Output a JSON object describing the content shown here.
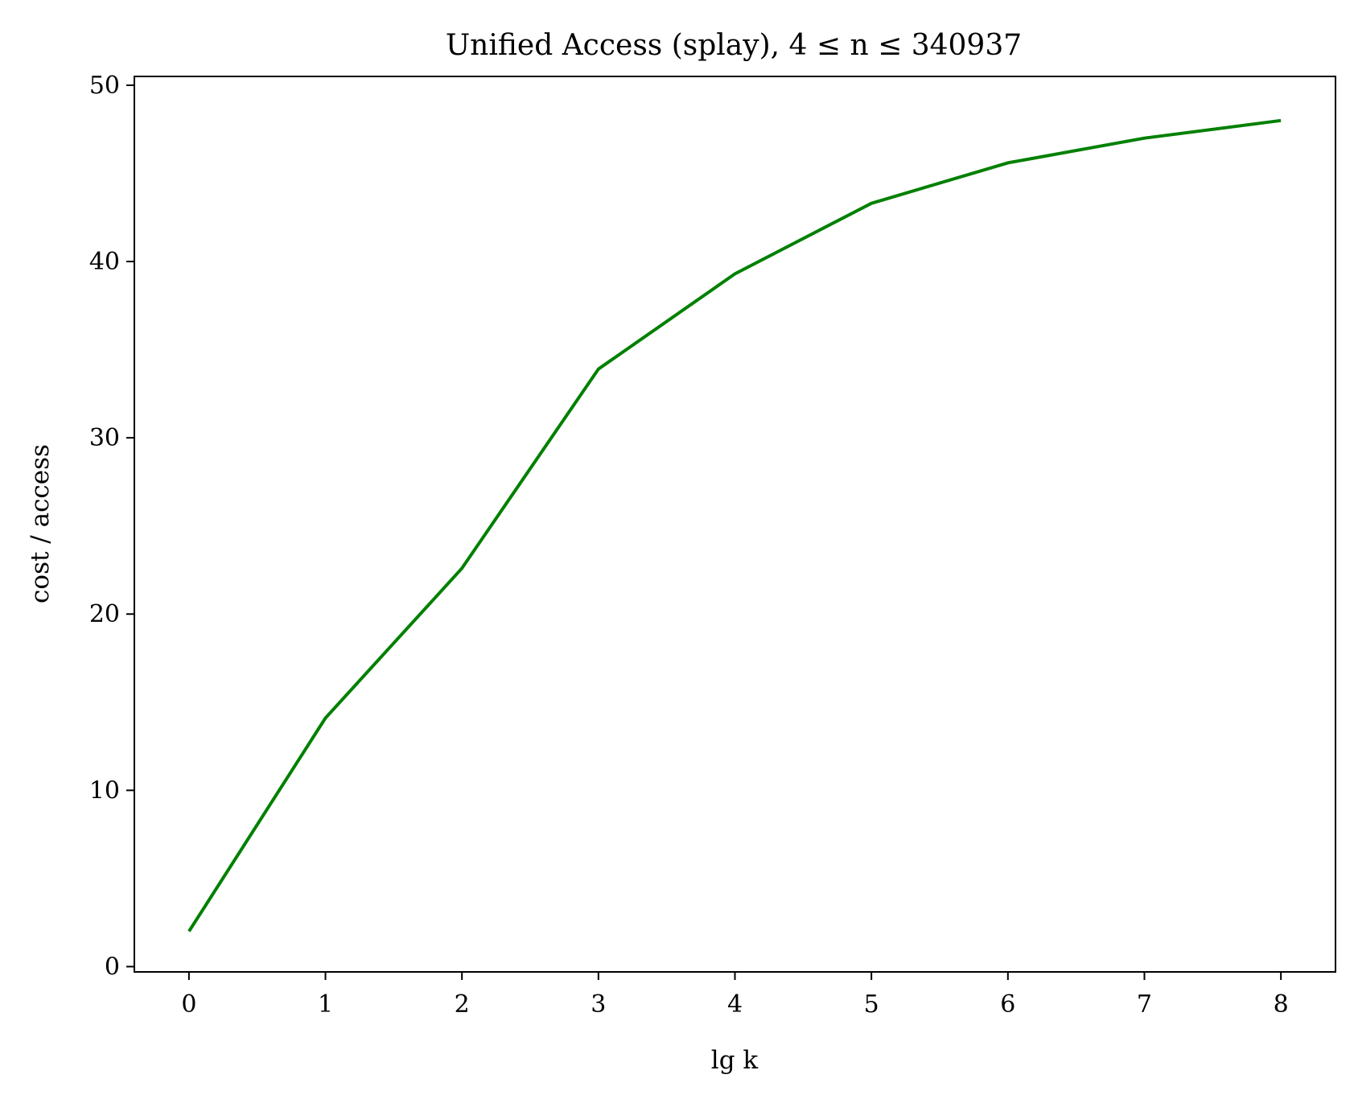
{
  "chart_data": {
    "type": "line",
    "title": "Unified Access (splay), 4 ≤ n ≤ 340937",
    "xlabel": "lg k",
    "ylabel": "cost / access",
    "x": [
      0,
      1,
      2,
      3,
      4,
      5,
      6,
      7,
      8
    ],
    "series": [
      {
        "values": [
          2.0,
          14.1,
          22.6,
          33.9,
          39.3,
          43.3,
          45.6,
          47.0,
          48.0
        ],
        "color": "#008000"
      }
    ],
    "xlim": [
      -0.4,
      8.4
    ],
    "ylim": [
      -0.3,
      50.5
    ],
    "xticks": [
      0,
      1,
      2,
      3,
      4,
      5,
      6,
      7,
      8
    ],
    "yticks": [
      0,
      10,
      20,
      30,
      40,
      50
    ],
    "grid": false,
    "legend": "none"
  }
}
